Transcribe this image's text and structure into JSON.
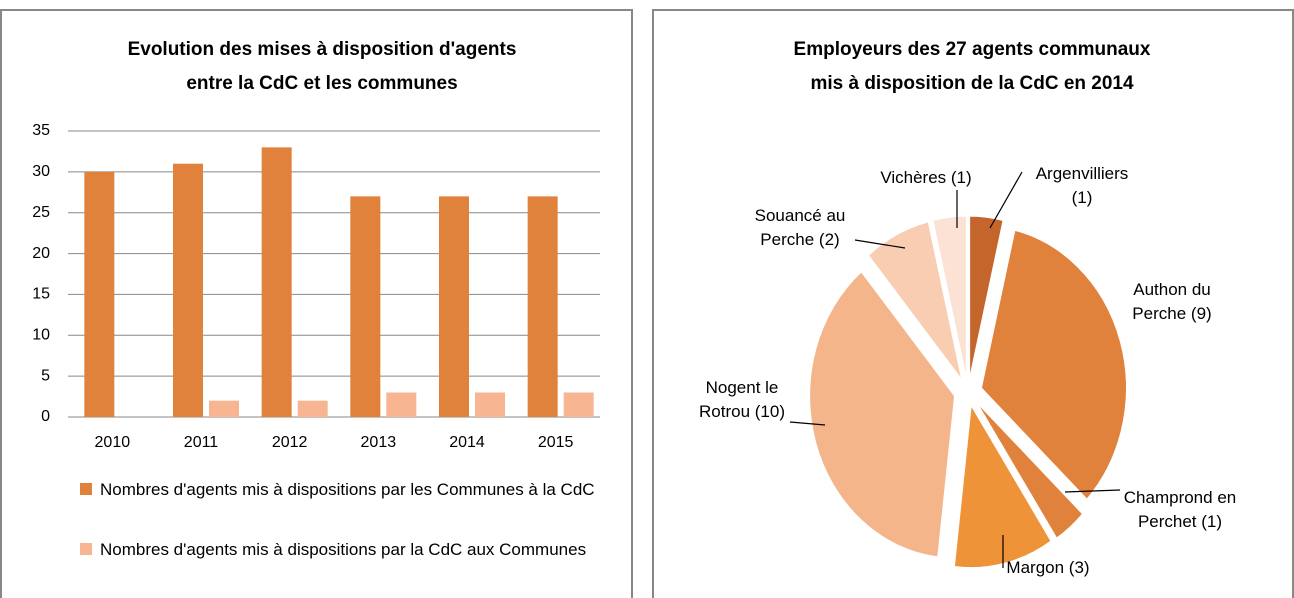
{
  "chart_data": [
    {
      "type": "bar",
      "title": [
        "Evolution des mises à disposition d'agents",
        "entre la CdC et les communes"
      ],
      "categories": [
        "2010",
        "2011",
        "2012",
        "2013",
        "2014",
        "2015"
      ],
      "series": [
        {
          "name": "Nombres d'agents mis à dispositions par les Communes à la CdC",
          "color": "#e0823c",
          "values": [
            30,
            31,
            33,
            27,
            27,
            27
          ]
        },
        {
          "name": "Nombres d'agents mis à dispositions par la CdC aux Communes",
          "color": "#f8b592",
          "values": [
            0,
            2,
            2,
            3,
            3,
            3
          ]
        }
      ],
      "ylim": [
        0,
        35
      ],
      "yticks": [
        0,
        5,
        10,
        15,
        20,
        25,
        30,
        35
      ],
      "grid": true,
      "legend": "bottom"
    },
    {
      "type": "pie",
      "title": [
        "Employeurs des 27 agents communaux",
        "mis à disposition de la CdC en 2014"
      ],
      "categories": [
        "Argenvilliers",
        "Authon du Perche",
        "Champrond en Perchet",
        "Margon",
        "Nogent le Rotrou",
        "Souancé au Perche",
        "Vichères"
      ],
      "values": [
        1,
        9,
        1,
        3,
        10,
        2,
        1
      ],
      "value_labels": [
        "(1)",
        "(9)",
        "(1)",
        "(3)",
        "(10)",
        "(2)",
        "(1)"
      ],
      "colors": [
        "#c4662c",
        "#e0823c",
        "#e0823c",
        "#ee9338",
        "#f4b58a",
        "#f8cdb2",
        "#fbe2d4"
      ]
    }
  ]
}
